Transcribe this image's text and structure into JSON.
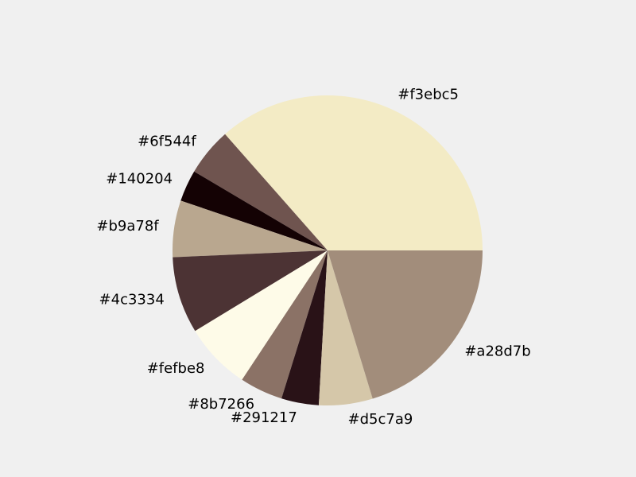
{
  "background": "#f0f0f0",
  "chart_data": {
    "type": "pie",
    "title": "",
    "start_angle_deg": 0,
    "direction": "counterclockwise",
    "slices": [
      {
        "label": "#f3ebc5",
        "value": 36.5,
        "color": "#f3ebc5"
      },
      {
        "label": "#6f544f",
        "value": 5.0,
        "color": "#6f544f"
      },
      {
        "label": "#140204",
        "value": 3.3,
        "color": "#140204"
      },
      {
        "label": "#b9a78f",
        "value": 5.9,
        "color": "#b9a78f"
      },
      {
        "label": "#4c3334",
        "value": 8.0,
        "color": "#4c3334"
      },
      {
        "label": "#fefbe8",
        "value": 7.0,
        "color": "#fefbe8"
      },
      {
        "label": "#8b7266",
        "value": 4.5,
        "color": "#8b7266"
      },
      {
        "label": "#291217",
        "value": 3.9,
        "color": "#291217"
      },
      {
        "label": "#d5c7a9",
        "value": 5.6,
        "color": "#d5c7a9"
      },
      {
        "label": "#a28d7b",
        "value": 20.3,
        "color": "#a28d7b"
      }
    ]
  }
}
